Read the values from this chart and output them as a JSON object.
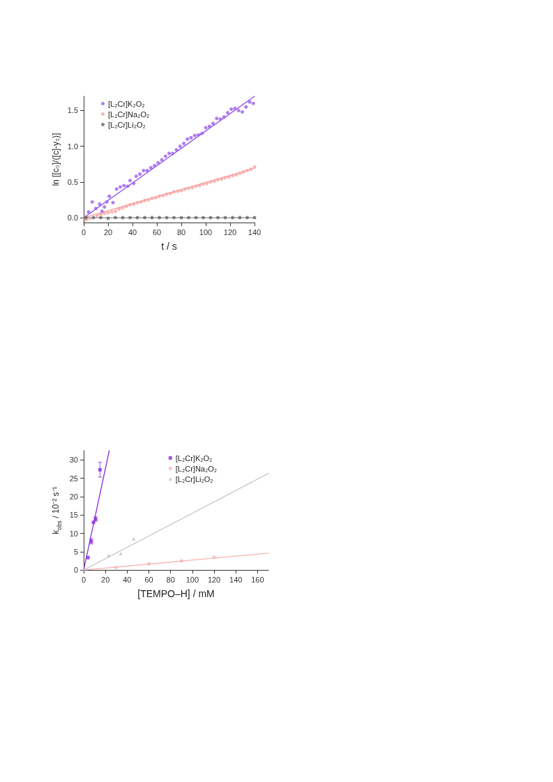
{
  "chart_data": [
    {
      "type": "scatter",
      "xlabel": "t / s",
      "ylabel": "ln [[c₀]/([c]-y₀)]",
      "xlim": [
        0,
        140
      ],
      "xticks": [
        0,
        20,
        40,
        60,
        80,
        100,
        120,
        140
      ],
      "ylim": [
        -0.07,
        1.7
      ],
      "yticks": [
        {
          "value": 0,
          "label": "0.0"
        },
        {
          "value": 0.5,
          "label": "0.5"
        },
        {
          "value": 1,
          "label": "1.0"
        },
        {
          "value": 1.5,
          "label": "1.5"
        }
      ],
      "grid": false,
      "legend": "top left",
      "series": [
        {
          "name": "[L₂Cr]K₂O₂",
          "color": "#9b5cf0",
          "marker": "circle",
          "x": [
            4,
            7,
            10,
            13,
            15,
            17,
            19,
            21,
            24,
            27,
            30,
            33,
            36,
            38,
            41,
            43,
            46,
            49,
            52,
            55,
            58,
            61,
            64,
            67,
            70,
            73,
            76,
            79,
            82,
            85,
            88,
            91,
            94,
            97,
            100,
            103,
            106,
            109,
            112,
            115,
            118,
            121,
            124,
            127,
            130,
            133,
            136,
            139
          ],
          "values": [
            0.08,
            0.22,
            0.13,
            0.19,
            0.09,
            0.15,
            0.22,
            0.3,
            0.21,
            0.4,
            0.43,
            0.45,
            0.44,
            0.52,
            0.48,
            0.58,
            0.61,
            0.66,
            0.66,
            0.7,
            0.73,
            0.77,
            0.81,
            0.86,
            0.9,
            0.9,
            0.95,
            1.0,
            1.04,
            1.1,
            1.12,
            1.15,
            1.16,
            1.18,
            1.26,
            1.28,
            1.32,
            1.39,
            1.38,
            1.41,
            1.47,
            1.52,
            1.53,
            1.5,
            1.48,
            1.55,
            1.62,
            1.6
          ]
        },
        {
          "name": "[L₂Cr]Na₂O₂",
          "color": "#f7a3a3",
          "marker": "circle",
          "x": [
            2,
            5,
            8,
            11,
            14,
            17,
            20,
            23,
            26,
            29,
            32,
            35,
            38,
            41,
            44,
            47,
            50,
            53,
            56,
            59,
            62,
            65,
            68,
            71,
            74,
            77,
            80,
            83,
            86,
            89,
            92,
            95,
            98,
            101,
            104,
            107,
            110,
            113,
            116,
            119,
            122,
            125,
            128,
            131,
            134,
            137,
            140
          ],
          "values": [
            -0.03,
            -0.01,
            null,
            0.03,
            0.05,
            0.06,
            0.07,
            0.08,
            0.09,
            0.12,
            0.14,
            0.16,
            0.18,
            0.19,
            0.21,
            0.22,
            0.24,
            0.25,
            0.27,
            0.28,
            0.3,
            0.31,
            0.33,
            0.34,
            0.36,
            0.37,
            0.38,
            0.4,
            0.41,
            0.42,
            0.44,
            0.45,
            0.47,
            0.48,
            0.5,
            0.51,
            0.53,
            0.54,
            0.56,
            0.57,
            0.59,
            0.6,
            0.62,
            0.64,
            0.66,
            0.68,
            0.71
          ]
        },
        {
          "name": "[L₂Cr]Li₂O₂",
          "color": "#666666",
          "marker": "circle",
          "x": [
            2,
            8,
            14,
            20,
            26,
            32,
            38,
            44,
            50,
            56,
            62,
            68,
            74,
            80,
            86,
            92,
            98,
            104,
            110,
            116,
            122,
            128,
            134,
            140
          ],
          "values": [
            0,
            0,
            0,
            -0.01,
            0,
            0,
            0,
            0,
            0,
            0,
            0,
            0,
            0,
            0,
            0,
            0,
            0,
            0,
            0,
            0,
            0,
            0,
            0,
            0
          ]
        },
        {
          "type": "line",
          "color": "#8a4cf0",
          "x": [
            0,
            140
          ],
          "values": [
            0,
            1.7
          ]
        },
        {
          "type": "line",
          "color": "#f59a9a",
          "x": [
            0,
            140
          ],
          "values": [
            0,
            0.69
          ]
        },
        {
          "type": "line",
          "color": "#888888",
          "x": [
            0,
            140
          ],
          "values": [
            0,
            0
          ]
        }
      ]
    },
    {
      "type": "scatter",
      "xlabel": "[TEMPO–H] / mM",
      "ylabel": "k$_{obs}$ / 10⁻² s⁻¹",
      "xlim": [
        0,
        170
      ],
      "xticks": [
        0,
        20,
        40,
        60,
        80,
        100,
        120,
        140,
        160
      ],
      "ylim": [
        0,
        32.5
      ],
      "yticks": [
        0,
        5,
        10,
        15,
        20,
        25,
        30
      ],
      "grid": false,
      "legend": "top right",
      "series": [
        {
          "name": "[L₂Cr]K₂O₂",
          "color": "#8a2be2",
          "marker": "square",
          "x": [
            4,
            7,
            9,
            11,
            15
          ],
          "values": [
            3.4,
            7.8,
            13,
            13.9,
            27.3
          ],
          "errors": [
            null,
            0.7,
            null,
            0.6,
            2
          ]
        },
        {
          "name": "[L₂Cr]Na₂O₂",
          "color": "#f7b3b3",
          "marker": "circle",
          "x": [
            30,
            60,
            90,
            120
          ],
          "values": [
            0.7,
            1.7,
            2.5,
            3.5
          ]
        },
        {
          "name": "[L₂Cr]Li₂O₂",
          "color": "#bbbbbb",
          "marker": "triangle",
          "x": [
            23,
            34,
            46
          ],
          "values": [
            4,
            4.5,
            8.5
          ]
        },
        {
          "type": "line",
          "color": "#8a2be2",
          "x": [
            0,
            23.5
          ],
          "values": [
            0,
            32.5
          ]
        },
        {
          "type": "line",
          "color": "#f7b3b3",
          "x": [
            0,
            170
          ],
          "values": [
            0,
            4.6
          ]
        },
        {
          "type": "line",
          "color": "#c8c8c8",
          "x": [
            0,
            170
          ],
          "values": [
            0,
            26.3
          ]
        }
      ]
    }
  ]
}
